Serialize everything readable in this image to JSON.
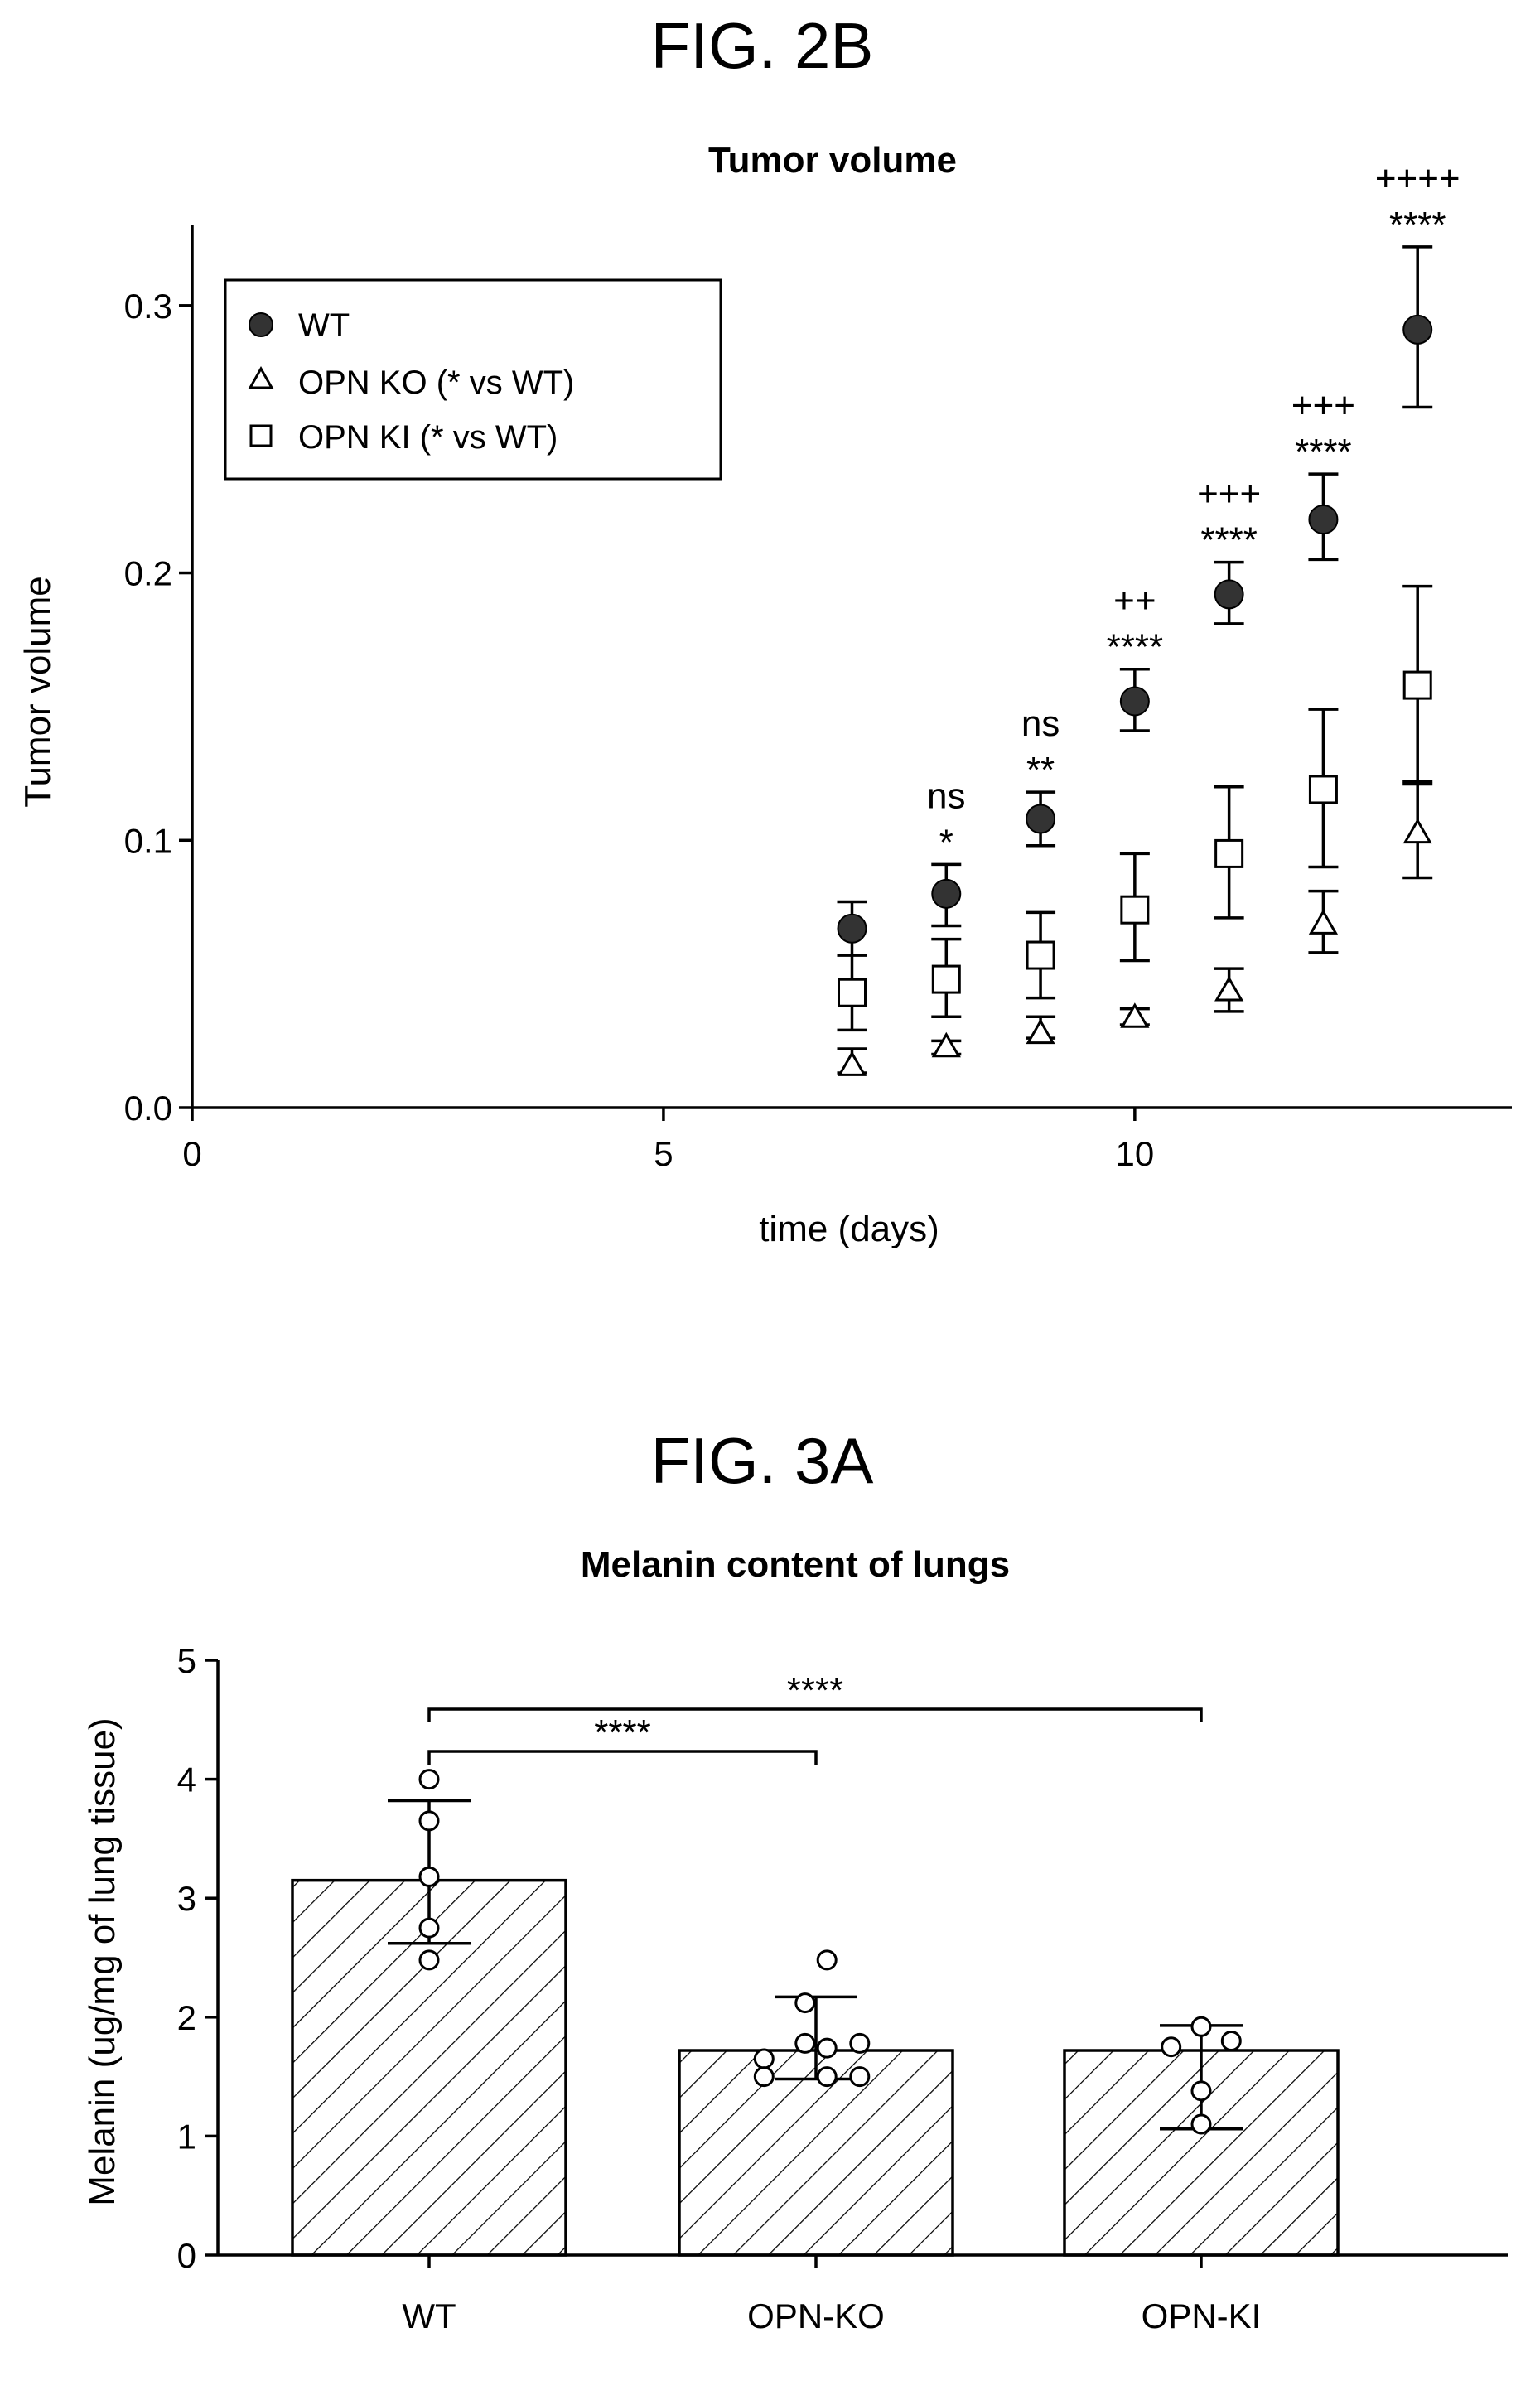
{
  "figures": [
    {
      "label": "FIG. 2B"
    },
    {
      "label": "FIG. 3A"
    }
  ],
  "chart_data": [
    {
      "type": "scatter",
      "title": "Tumor volume",
      "xlabel": "time (days)",
      "ylabel": "Tumor volume",
      "xlim": [
        0,
        14
      ],
      "ylim": [
        0,
        0.33
      ],
      "xticks": [
        0,
        5,
        10
      ],
      "xtick_labels": [
        "0",
        "5",
        "10"
      ],
      "yticks": [
        0,
        0.1,
        0.2,
        0.3
      ],
      "ytick_labels": [
        "0.0",
        "0.1",
        "0.2",
        "0.3"
      ],
      "grid": false,
      "legend_position": "top-left",
      "series": [
        {
          "name": "WT",
          "marker": "filled-circle",
          "x": [
            7,
            8,
            9,
            10,
            11,
            12,
            13
          ],
          "y": [
            0.067,
            0.08,
            0.108,
            0.152,
            0.192,
            0.22,
            0.291
          ],
          "err_low": [
            0.057,
            0.068,
            0.098,
            0.141,
            0.181,
            0.205,
            0.262
          ],
          "err_high": [
            0.077,
            0.091,
            0.118,
            0.164,
            0.204,
            0.237,
            0.322
          ]
        },
        {
          "name": "OPN KO (* vs WT)",
          "marker": "open-triangle",
          "x": [
            7,
            8,
            9,
            10,
            11,
            12,
            13
          ],
          "y": [
            0.016,
            0.023,
            0.028,
            0.034,
            0.044,
            0.069,
            0.103
          ],
          "err_low": [
            0.013,
            0.02,
            0.026,
            0.031,
            0.036,
            0.058,
            0.086
          ],
          "err_high": [
            0.022,
            0.025,
            0.034,
            0.037,
            0.052,
            0.081,
            0.121
          ]
        },
        {
          "name": "OPN KI (* vs WT)",
          "marker": "open-square",
          "x": [
            7,
            8,
            9,
            10,
            11,
            12,
            13
          ],
          "y": [
            0.043,
            0.048,
            0.057,
            0.074,
            0.095,
            0.119,
            0.158
          ],
          "err_low": [
            0.029,
            0.034,
            0.041,
            0.055,
            0.071,
            0.09,
            0.122
          ],
          "err_high": [
            0.057,
            0.063,
            0.073,
            0.095,
            0.12,
            0.149,
            0.195
          ]
        }
      ],
      "annotations": [
        {
          "x": 8,
          "lines": [
            "ns",
            "*"
          ]
        },
        {
          "x": 9,
          "lines": [
            "ns",
            "**"
          ]
        },
        {
          "x": 10,
          "lines": [
            "++",
            "****"
          ]
        },
        {
          "x": 11,
          "lines": [
            "+++",
            "****"
          ]
        },
        {
          "x": 12,
          "lines": [
            "+++",
            "****"
          ]
        },
        {
          "x": 13,
          "lines": [
            "++++",
            "****"
          ]
        }
      ]
    },
    {
      "type": "bar",
      "title": "Melanin content of lungs",
      "xlabel": "",
      "ylabel": "Melanin (ug/mg of lung tissue)",
      "ylim": [
        0,
        5
      ],
      "yticks": [
        0,
        1,
        2,
        3,
        4,
        5
      ],
      "ytick_labels": [
        "0",
        "1",
        "2",
        "3",
        "4",
        "5"
      ],
      "grid": false,
      "categories": [
        "WT",
        "OPN-KO",
        "OPN-KI"
      ],
      "values": [
        3.15,
        1.72,
        1.72
      ],
      "sd_low": [
        2.62,
        1.48,
        1.06
      ],
      "sd_high": [
        3.82,
        2.17,
        1.93
      ],
      "points": [
        [
          [
            0,
            4.0
          ],
          [
            0,
            3.65
          ],
          [
            0,
            3.18
          ],
          [
            0,
            2.75
          ],
          [
            0,
            2.48
          ]
        ],
        [
          [
            -0.38,
            1.65
          ],
          [
            -0.38,
            1.5
          ],
          [
            -0.08,
            2.12
          ],
          [
            -0.08,
            1.78
          ],
          [
            0.08,
            2.48
          ],
          [
            0.08,
            1.5
          ],
          [
            0.08,
            1.74
          ],
          [
            0.32,
            1.78
          ],
          [
            0.32,
            1.5
          ]
        ],
        [
          [
            -0.22,
            1.75
          ],
          [
            0,
            1.92
          ],
          [
            0,
            1.38
          ],
          [
            0,
            1.1
          ],
          [
            0.22,
            1.8
          ]
        ]
      ],
      "significance": [
        {
          "from": 0,
          "to": 1,
          "label": "****"
        },
        {
          "from": 0,
          "to": 2,
          "label": "****"
        }
      ]
    }
  ]
}
